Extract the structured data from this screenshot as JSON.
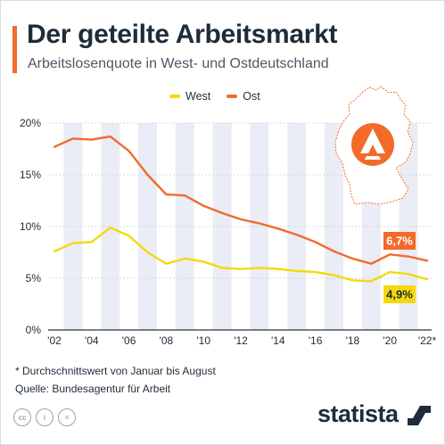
{
  "header": {
    "title": "Der geteilte Arbeitsmarkt",
    "subtitle": "Arbeitslosenquote in West- und Ostdeutschland"
  },
  "legend": {
    "items": [
      {
        "label": "West",
        "color": "#f5d90a"
      },
      {
        "label": "Ost",
        "color": "#f26b2a"
      }
    ]
  },
  "chart_data": {
    "type": "line",
    "x": [
      2002,
      2003,
      2004,
      2005,
      2006,
      2007,
      2008,
      2009,
      2010,
      2011,
      2012,
      2013,
      2014,
      2015,
      2016,
      2017,
      2018,
      2019,
      2020,
      2021,
      2022
    ],
    "series": [
      {
        "name": "West",
        "color": "#f5d90a",
        "values": [
          7.6,
          8.4,
          8.5,
          9.9,
          9.1,
          7.5,
          6.4,
          6.9,
          6.6,
          6.0,
          5.9,
          6.0,
          5.9,
          5.7,
          5.6,
          5.3,
          4.8,
          4.7,
          5.6,
          5.4,
          4.9
        ],
        "end_label": "4,9%"
      },
      {
        "name": "Ost",
        "color": "#f26b2a",
        "values": [
          17.7,
          18.5,
          18.4,
          18.7,
          17.3,
          15.0,
          13.1,
          13.0,
          12.0,
          11.3,
          10.7,
          10.3,
          9.8,
          9.2,
          8.5,
          7.6,
          6.9,
          6.4,
          7.3,
          7.1,
          6.7
        ],
        "end_label": "6,7%"
      }
    ],
    "ylim": [
      0,
      20
    ],
    "yticks": [
      0,
      5,
      10,
      15,
      20
    ],
    "ytick_labels": [
      "0%",
      "5%",
      "10%",
      "15%",
      "20%"
    ],
    "xtick_labels": [
      "'02",
      "'04",
      "'06",
      "'08",
      "'10",
      "'12",
      "'14",
      "'16",
      "'18",
      "'20",
      "'22*"
    ],
    "legend_position": "top-center",
    "grid": true
  },
  "map": {
    "color": "#f26b2a",
    "logo_color": "#f26b2a"
  },
  "footer": {
    "note": "* Durchschnittswert von Januar bis August",
    "source": "Quelle: Bundesagentur für Arbeit",
    "cc_icons": [
      {
        "icon": "cc-icon",
        "text": "cc"
      },
      {
        "icon": "attribution-icon",
        "text": "i"
      },
      {
        "icon": "no-derivatives-icon",
        "text": "="
      }
    ],
    "brand": "statista"
  }
}
